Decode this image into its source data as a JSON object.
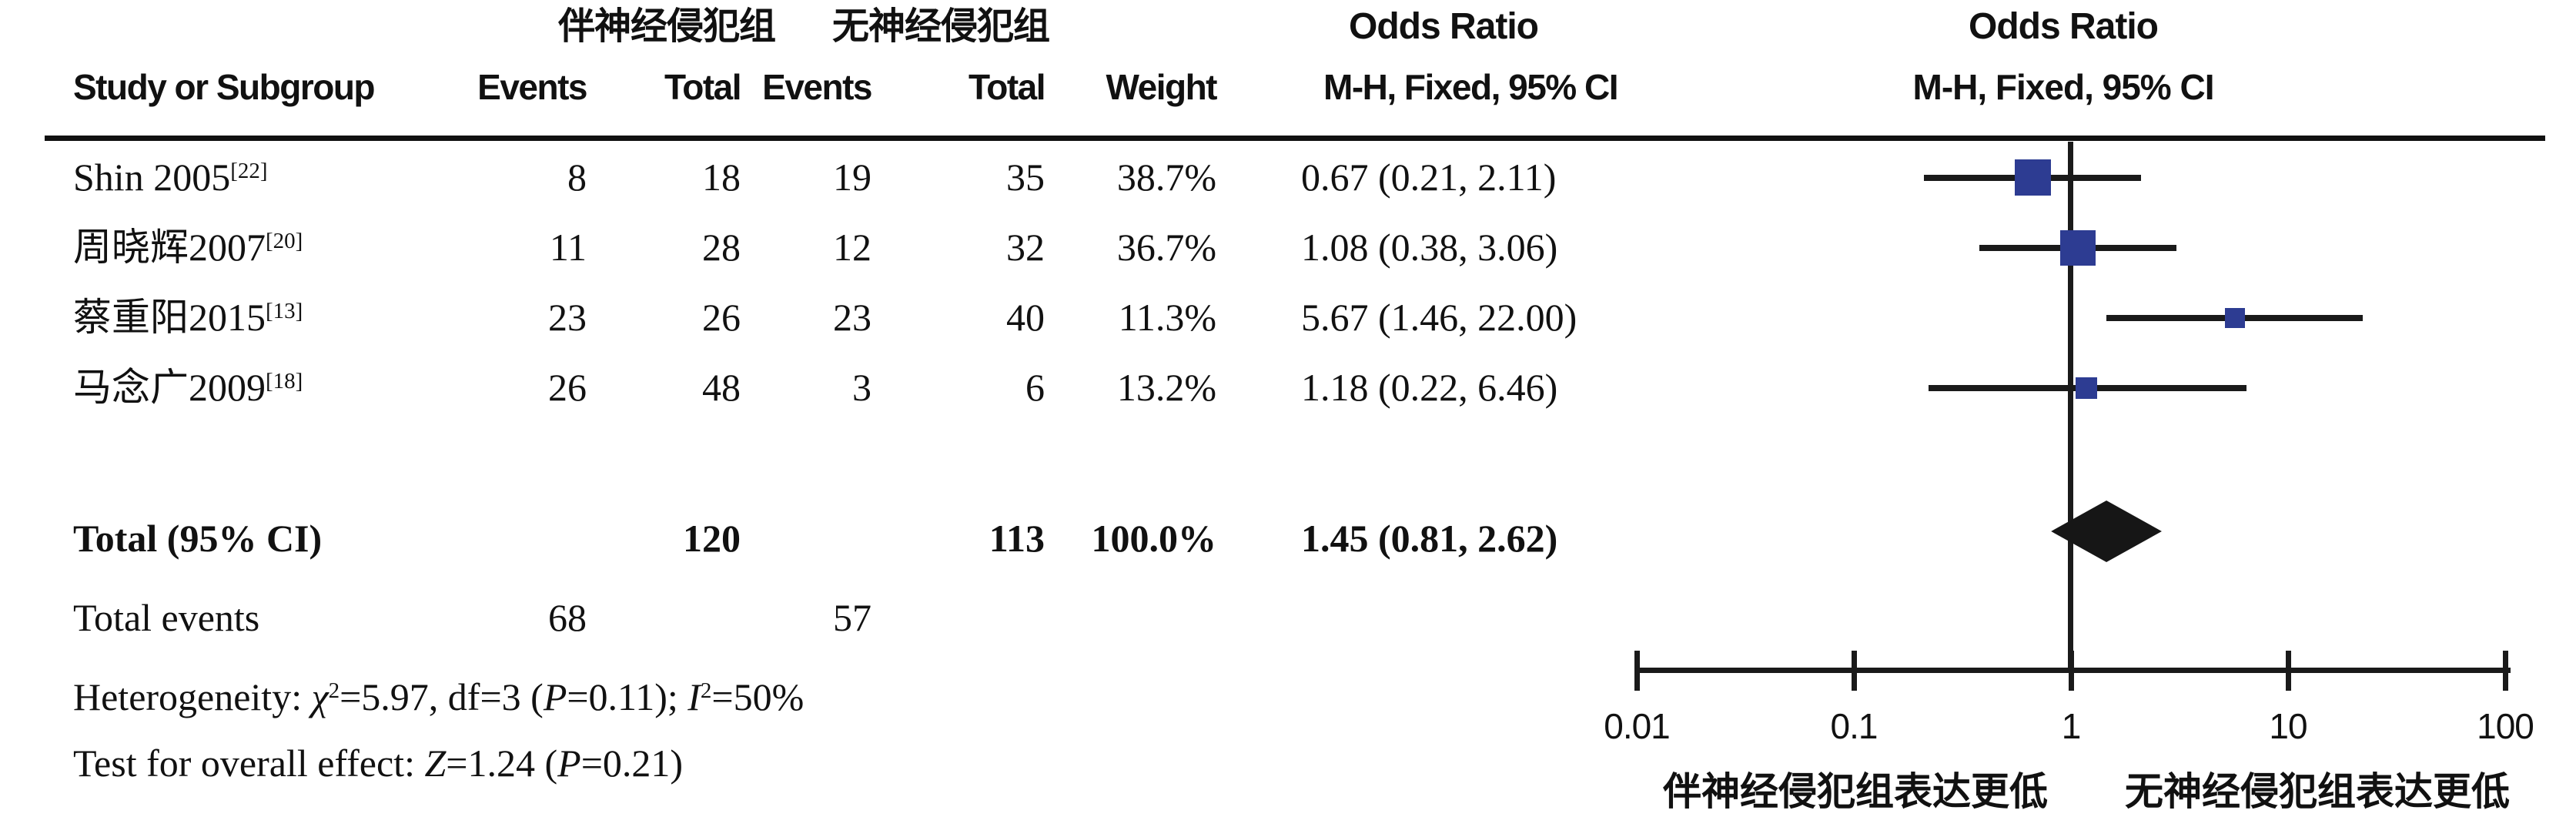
{
  "header": {
    "group1": "伴神经侵犯组",
    "group2": "无神经侵犯组",
    "or_title_left": "Odds Ratio",
    "or_title_right": "Odds Ratio",
    "col_study": "Study or Subgroup",
    "col_events1": "Events",
    "col_total1": "Total",
    "col_events2": "Events",
    "col_total2": "Total",
    "col_weight": "Weight",
    "col_mh_left": "M-H, Fixed, 95% CI",
    "col_mh_right": "M-H, Fixed, 95% CI"
  },
  "rows": [
    {
      "study": "Shin 2005",
      "ref": "[22]",
      "events1": "8",
      "total1": "18",
      "events2": "19",
      "total2": "35",
      "weight": "38.7%",
      "ci": "0.67 (0.21, 2.11)"
    },
    {
      "study": "周晓辉2007",
      "ref": "[20]",
      "events1": "11",
      "total1": "28",
      "events2": "12",
      "total2": "32",
      "weight": "36.7%",
      "ci": "1.08 (0.38, 3.06)"
    },
    {
      "study": "蔡重阳2015",
      "ref": "[13]",
      "events1": "23",
      "total1": "26",
      "events2": "23",
      "total2": "40",
      "weight": "11.3%",
      "ci": "5.67 (1.46, 22.00)"
    },
    {
      "study": "马念广2009",
      "ref": "[18]",
      "events1": "26",
      "total1": "48",
      "events2": "3",
      "total2": "6",
      "weight": "13.2%",
      "ci": "1.18 (0.22, 6.46)"
    }
  ],
  "total_row": {
    "label": "Total (95% CI)",
    "total1": "120",
    "total2": "113",
    "weight": "100.0%",
    "ci": "1.45 (0.81, 2.62)"
  },
  "total_events": {
    "label": "Total events",
    "events1": "68",
    "events2": "57"
  },
  "stats": {
    "het_prefix": "Heterogeneity: ",
    "het_chi": "χ",
    "het_chi_sup": "2",
    "het_mid": "=5.97, df=3 (",
    "het_P": "P",
    "het_after_p": "=0.11); ",
    "het_I": "I",
    "het_I_sup": "2",
    "het_tail": "=50%",
    "test_prefix": "Test for overall effect: ",
    "test_Z": "Z",
    "test_mid": "=1.24 (",
    "test_P": "P",
    "test_tail": "=0.21)"
  },
  "axis": {
    "tick_labels": [
      "0.01",
      "0.1",
      "1",
      "10",
      "100"
    ],
    "footer_left": "伴神经侵犯组表达更低",
    "footer_right": "无神经侵犯组表达更低"
  },
  "colors": {
    "square_blue": "#2d3c92",
    "line_black": "#1a1a1a",
    "text": "#111111"
  },
  "chart_data": {
    "type": "forest",
    "effect_measure": "Odds Ratio, M-H, Fixed, 95% CI",
    "scale": "log10",
    "xlim": [
      0.01,
      100
    ],
    "ticks": [
      0.01,
      0.1,
      1,
      10,
      100
    ],
    "studies": [
      {
        "name": "Shin 2005[22]",
        "or": 0.67,
        "ci_low": 0.21,
        "ci_high": 2.11,
        "weight_pct": 38.7
      },
      {
        "name": "周晓辉2007[20]",
        "or": 1.08,
        "ci_low": 0.38,
        "ci_high": 3.06,
        "weight_pct": 36.7
      },
      {
        "name": "蔡重阳2015[13]",
        "or": 5.67,
        "ci_low": 1.46,
        "ci_high": 22.0,
        "weight_pct": 11.3
      },
      {
        "name": "马念广2009[18]",
        "or": 1.18,
        "ci_low": 0.22,
        "ci_high": 6.46,
        "weight_pct": 13.2
      }
    ],
    "summary": {
      "or": 1.45,
      "ci_low": 0.81,
      "ci_high": 2.62
    },
    "heterogeneity": {
      "chi2": 5.97,
      "df": 3,
      "p": 0.11,
      "i2_pct": 50
    },
    "overall_effect": {
      "z": 1.24,
      "p": 0.21
    }
  }
}
